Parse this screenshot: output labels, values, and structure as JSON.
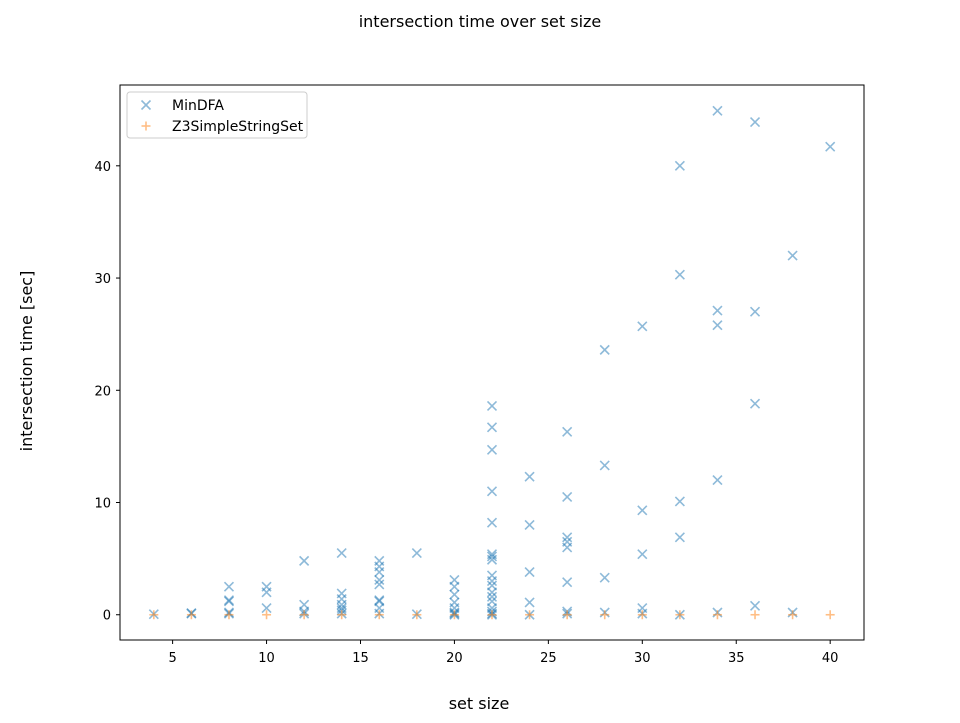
{
  "chart_data": {
    "type": "scatter",
    "title": "intersection time over set size",
    "xlabel": "set size",
    "ylabel": "intersection time [sec]",
    "xlim": [
      2.2,
      41.8
    ],
    "ylim": [
      -2.25,
      47.2
    ],
    "xticks": [
      5,
      10,
      15,
      20,
      25,
      30,
      35,
      40
    ],
    "yticks": [
      0,
      10,
      20,
      30,
      40
    ],
    "grid": false,
    "legend_position": "top-left",
    "series": [
      {
        "name": "MinDFA",
        "marker": "x",
        "color": "#1f77b4",
        "points": [
          [
            4,
            0.05
          ],
          [
            6,
            0.1
          ],
          [
            6,
            0.15
          ],
          [
            8,
            0.1
          ],
          [
            8,
            0.2
          ],
          [
            8,
            1.2
          ],
          [
            8,
            1.3
          ],
          [
            8,
            2.5
          ],
          [
            10,
            0.6
          ],
          [
            10,
            2.0
          ],
          [
            10,
            2.5
          ],
          [
            12,
            0.1
          ],
          [
            12,
            0.3
          ],
          [
            12,
            0.9
          ],
          [
            12,
            4.8
          ],
          [
            14,
            0.1
          ],
          [
            14,
            0.4
          ],
          [
            14,
            0.6
          ],
          [
            14,
            0.9
          ],
          [
            14,
            1.4
          ],
          [
            14,
            1.9
          ],
          [
            14,
            5.5
          ],
          [
            16,
            0.1
          ],
          [
            16,
            0.6
          ],
          [
            16,
            1.2
          ],
          [
            16,
            1.3
          ],
          [
            16,
            2.7
          ],
          [
            16,
            3.1
          ],
          [
            16,
            3.8
          ],
          [
            16,
            4.3
          ],
          [
            16,
            4.8
          ],
          [
            18,
            0.05
          ],
          [
            18,
            5.5
          ],
          [
            20,
            0.0
          ],
          [
            20,
            0.1
          ],
          [
            20,
            0.2
          ],
          [
            20,
            0.6
          ],
          [
            20,
            1.1
          ],
          [
            20,
            1.8
          ],
          [
            20,
            2.5
          ],
          [
            20,
            3.1
          ],
          [
            22,
            0.0
          ],
          [
            22,
            0.1
          ],
          [
            22,
            0.3
          ],
          [
            22,
            0.6
          ],
          [
            22,
            1.2
          ],
          [
            22,
            1.6
          ],
          [
            22,
            2.0
          ],
          [
            22,
            2.6
          ],
          [
            22,
            3.0
          ],
          [
            22,
            3.5
          ],
          [
            22,
            4.9
          ],
          [
            22,
            5.2
          ],
          [
            22,
            5.4
          ],
          [
            22,
            8.2
          ],
          [
            22,
            11.0
          ],
          [
            22,
            14.7
          ],
          [
            22,
            16.7
          ],
          [
            22,
            18.6
          ],
          [
            24,
            0.0
          ],
          [
            24,
            1.1
          ],
          [
            24,
            3.8
          ],
          [
            24,
            8.0
          ],
          [
            24,
            12.3
          ],
          [
            26,
            0.1
          ],
          [
            26,
            0.3
          ],
          [
            26,
            2.9
          ],
          [
            26,
            6.0
          ],
          [
            26,
            6.5
          ],
          [
            26,
            6.9
          ],
          [
            26,
            10.5
          ],
          [
            26,
            16.3
          ],
          [
            28,
            0.2
          ],
          [
            28,
            3.3
          ],
          [
            28,
            13.3
          ],
          [
            28,
            23.6
          ],
          [
            30,
            0.1
          ],
          [
            30,
            0.6
          ],
          [
            30,
            5.4
          ],
          [
            30,
            9.3
          ],
          [
            30,
            25.7
          ],
          [
            32,
            0.0
          ],
          [
            32,
            6.9
          ],
          [
            32,
            10.1
          ],
          [
            32,
            30.3
          ],
          [
            32,
            40.0
          ],
          [
            34,
            0.2
          ],
          [
            34,
            12.0
          ],
          [
            34,
            25.8
          ],
          [
            34,
            27.1
          ],
          [
            34,
            44.9
          ],
          [
            36,
            0.8
          ],
          [
            36,
            18.8
          ],
          [
            36,
            27.0
          ],
          [
            36,
            43.9
          ],
          [
            38,
            0.2
          ],
          [
            38,
            32.0
          ],
          [
            40,
            41.7
          ]
        ]
      },
      {
        "name": "Z3SimpleStringSet",
        "marker": "+",
        "color": "#ff7f0e",
        "points": [
          [
            4,
            0.0
          ],
          [
            6,
            0.0
          ],
          [
            8,
            0.0
          ],
          [
            10,
            0.0
          ],
          [
            12,
            0.0
          ],
          [
            14,
            0.0
          ],
          [
            16,
            0.0
          ],
          [
            18,
            0.0
          ],
          [
            20,
            0.0
          ],
          [
            22,
            0.0
          ],
          [
            24,
            0.0
          ],
          [
            26,
            0.0
          ],
          [
            28,
            0.0
          ],
          [
            30,
            0.0
          ],
          [
            32,
            0.0
          ],
          [
            34,
            0.0
          ],
          [
            36,
            0.0
          ],
          [
            38,
            0.0
          ],
          [
            40,
            0.0
          ]
        ]
      }
    ]
  }
}
